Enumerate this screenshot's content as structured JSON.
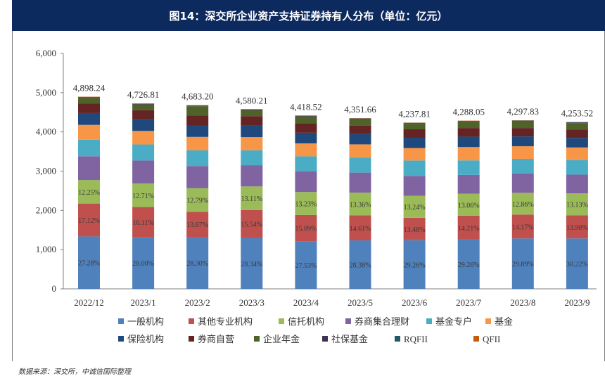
{
  "header": {
    "title": "图14：深交所企业资产支持证券持有人分布（单位：亿元）"
  },
  "footer": {
    "source": "数据来源：深交所，中诚信国际整理"
  },
  "chart_data": {
    "type": "bar",
    "stacked": true,
    "title": "图14：深交所企业资产支持证券持有人分布（单位：亿元）",
    "ylim": [
      0,
      6000
    ],
    "yticks": [
      0,
      1000,
      2000,
      3000,
      4000,
      5000,
      6000
    ],
    "ytick_labels": [
      "0",
      "1,000",
      "2,000",
      "3,000",
      "4,000",
      "5,000",
      "6,000"
    ],
    "categories": [
      "2022/12",
      "2023/1",
      "2023/2",
      "2023/3",
      "2023/4",
      "2023/5",
      "2023/6",
      "2023/7",
      "2023/8",
      "2023/9"
    ],
    "totals": [
      4898.24,
      4726.81,
      4683.2,
      4580.21,
      4418.52,
      4351.66,
      4237.81,
      4288.05,
      4297.83,
      4253.52
    ],
    "total_labels": [
      "4,898.24",
      "4,726.81",
      "4,683.20",
      "4,580.21",
      "4,418.52",
      "4,351.66",
      "4,237.81",
      "4,288.05",
      "4,297.83",
      "4,253.52"
    ],
    "legend_position": "bottom",
    "grid": false,
    "series": [
      {
        "name": "一般机构",
        "color": "#4f81bd",
        "values": [
          1336,
          1324,
          1325,
          1298,
          1216,
          1235,
          1240,
          1255,
          1285,
          1285
        ],
        "labels": [
          "27.28%",
          "28.00%",
          "28.30%",
          "28.34%",
          "27.53%",
          "28.38%",
          "29.26%",
          "29.26%",
          "29.89%",
          "30.22%"
        ]
      },
      {
        "name": "其他专业机构",
        "color": "#c0504d",
        "values": [
          838,
          761,
          640,
          712,
          667,
          636,
          571,
          609,
          609,
          591
        ],
        "labels": [
          "17.12%",
          "16.11%",
          "13.67%",
          "15.54%",
          "15.09%",
          "14.61%",
          "13.48%",
          "14.21%",
          "14.17%",
          "13.90%"
        ]
      },
      {
        "name": "信托机构",
        "color": "#9bbb59",
        "values": [
          600,
          601,
          599,
          600,
          585,
          581,
          561,
          560,
          553,
          558
        ],
        "labels": [
          "12.25%",
          "12.71%",
          "12.79%",
          "13.11%",
          "13.23%",
          "13.36%",
          "13.24%",
          "13.06%",
          "12.86%",
          "13.13%"
        ]
      },
      {
        "name": "券商集合理财",
        "color": "#8064a2",
        "values": [
          606,
          584,
          566,
          541,
          530,
          510,
          504,
          480,
          491,
          477
        ]
      },
      {
        "name": "基金专户",
        "color": "#4bacc6",
        "values": [
          422,
          410,
          400,
          380,
          380,
          385,
          395,
          370,
          376,
          372
        ]
      },
      {
        "name": "基金",
        "color": "#f79646",
        "values": [
          377,
          344,
          342,
          336,
          330,
          335,
          315,
          340,
          320,
          320
        ]
      },
      {
        "name": "保险机构",
        "color": "#1f497d",
        "values": [
          300,
          300,
          292,
          290,
          270,
          265,
          265,
          265,
          250,
          245
        ]
      },
      {
        "name": "券商自营",
        "color": "#632423",
        "values": [
          240,
          230,
          250,
          245,
          245,
          215,
          215,
          220,
          215,
          210
        ]
      },
      {
        "name": "企业年金",
        "color": "#4f6228",
        "values": [
          150,
          145,
          240,
          150,
          170,
          160,
          140,
          160,
          170,
          165
        ]
      },
      {
        "name": "社保基金",
        "color": "#3f3151",
        "values": [
          15,
          15,
          15,
          15,
          15,
          15,
          18,
          15,
          15,
          16
        ]
      },
      {
        "name": "RQFII",
        "color": "#215968",
        "values": [
          8,
          8,
          8,
          8,
          6,
          8,
          8,
          8,
          8,
          8
        ]
      },
      {
        "name": "QFII",
        "color": "#c55a11",
        "values": [
          6,
          5,
          6,
          5,
          5,
          7,
          6,
          6,
          6,
          6
        ]
      }
    ]
  }
}
